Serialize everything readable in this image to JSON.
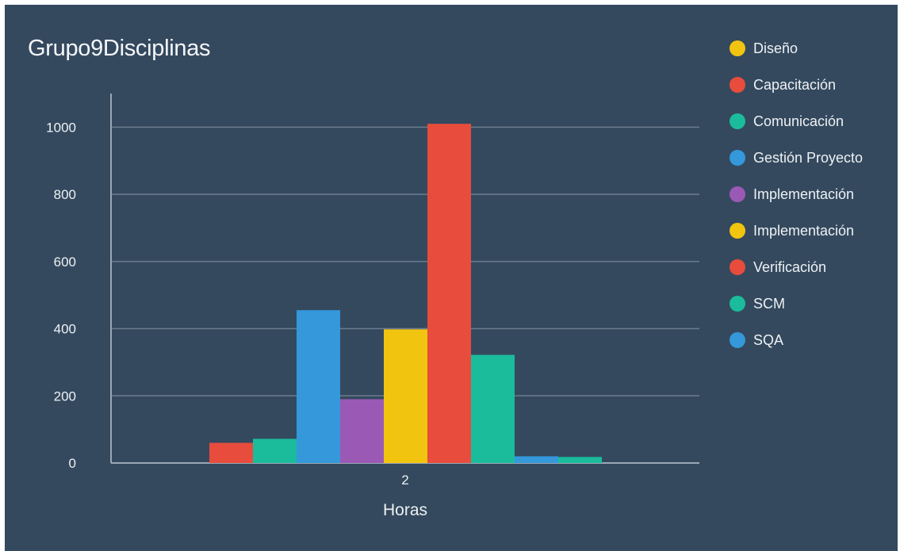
{
  "chart_data": {
    "type": "bar",
    "title": "Grupo9Disciplinas",
    "xlabel": "Horas",
    "ylabel": "",
    "categories": [
      "2"
    ],
    "ylim": [
      0,
      1100
    ],
    "yticks": [
      0,
      200,
      400,
      600,
      800,
      1000
    ],
    "grid": true,
    "legend_position": "right",
    "series": [
      {
        "name": "Diseño",
        "color": "#f1c40f",
        "values": [
          0
        ]
      },
      {
        "name": "Capacitación",
        "color": "#e74c3c",
        "values": [
          60
        ]
      },
      {
        "name": "Comunicación",
        "color": "#1abc9c",
        "values": [
          72
        ]
      },
      {
        "name": "Gestión Proyecto",
        "color": "#3498db",
        "values": [
          455
        ]
      },
      {
        "name": "Implementación",
        "color": "#9b59b6",
        "values": [
          190
        ]
      },
      {
        "name": "Implementación",
        "color": "#f1c40f",
        "values": [
          398
        ]
      },
      {
        "name": "Verificación",
        "color": "#e74c3c",
        "values": [
          1010
        ]
      },
      {
        "name": "SCM",
        "color": "#1abc9c",
        "values": [
          322
        ]
      },
      {
        "name": "SQA",
        "color": "#3498db",
        "values": [
          20
        ]
      }
    ],
    "extra_bars": [
      {
        "color": "#1abc9c",
        "value": 18
      },
      {
        "color": "#3498db",
        "value": 0
      }
    ]
  },
  "colors": {
    "background": "#34495e",
    "grid": "#6b7c8d",
    "axis": "#9aa7b4",
    "text": "#eef1f4"
  }
}
